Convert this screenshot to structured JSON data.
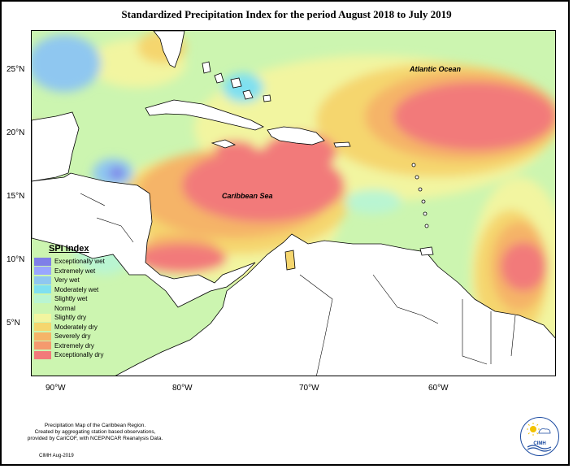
{
  "title": "Standardized Precipitation Index for the period August 2018 to July 2019",
  "map": {
    "lat_labels": [
      "25°N",
      "20°N",
      "15°N",
      "10°N",
      "5°N"
    ],
    "lon_labels": [
      "90°W",
      "80°W",
      "70°W",
      "60°W"
    ],
    "place_labels": {
      "atlantic": "Atlantic Ocean",
      "caribbean": "Caribbean Sea"
    }
  },
  "legend": {
    "title": "SPI Index",
    "items": [
      {
        "label": "Exceptionally wet",
        "color": "#7f7fe8"
      },
      {
        "label": "Extremely wet",
        "color": "#99a6ff"
      },
      {
        "label": "Very wet",
        "color": "#8fc7f0"
      },
      {
        "label": "Moderately wet",
        "color": "#7fe0f0"
      },
      {
        "label": "Slightly wet",
        "color": "#b9f5d2"
      },
      {
        "label": "Normal",
        "color": "#ccf5b0"
      },
      {
        "label": "Slightly dry",
        "color": "#f2f5a0"
      },
      {
        "label": "Moderately dry",
        "color": "#f5d66e"
      },
      {
        "label": "Severely dry",
        "color": "#f5b468"
      },
      {
        "label": "Extremely dry",
        "color": "#f59a6e"
      },
      {
        "label": "Exceptionally dry",
        "color": "#f27a7a"
      }
    ]
  },
  "footer": {
    "line1": "Precipitation Map of the Caribbean Region.",
    "line2": "Created by aggregating station based observations,",
    "line3": "provided by CariCOF, with NCEP/NCAR Reanalysis Data.",
    "credit": "CIMH Aug-2019"
  },
  "logo": {
    "text": "CIMH"
  }
}
